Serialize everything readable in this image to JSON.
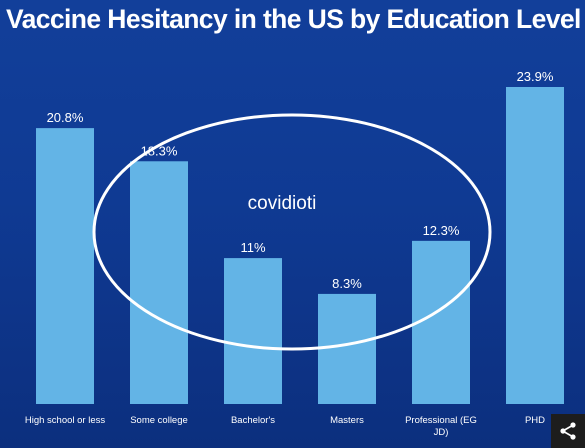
{
  "title": "Vaccine Hesitancy in the US by Education Level",
  "annotation": "covidioti",
  "chart_data": {
    "type": "bar",
    "title": "Vaccine Hesitancy in the US by Education Level",
    "categories": [
      "High school or less",
      "Some college",
      "Bachelor's",
      "Masters",
      "Professional (EG JD)",
      "PHD"
    ],
    "values": [
      20.8,
      18.3,
      11,
      8.3,
      12.3,
      23.9
    ],
    "value_labels": [
      "20.8%",
      "18.3%",
      "11%",
      "8.3%",
      "12.3%",
      "23.9%"
    ],
    "category_label_lines": [
      [
        "High school or less"
      ],
      [
        "Some college"
      ],
      [
        "Bachelor's"
      ],
      [
        "Masters"
      ],
      [
        "Professional (EG",
        "JD)"
      ],
      [
        "PHD"
      ]
    ],
    "xlabel": "",
    "ylabel": "",
    "ylim": [
      0,
      25
    ],
    "grid": false,
    "bar_color": "#63b4e6",
    "background_color": "#0f3a93"
  },
  "share_icon": "share-icon"
}
